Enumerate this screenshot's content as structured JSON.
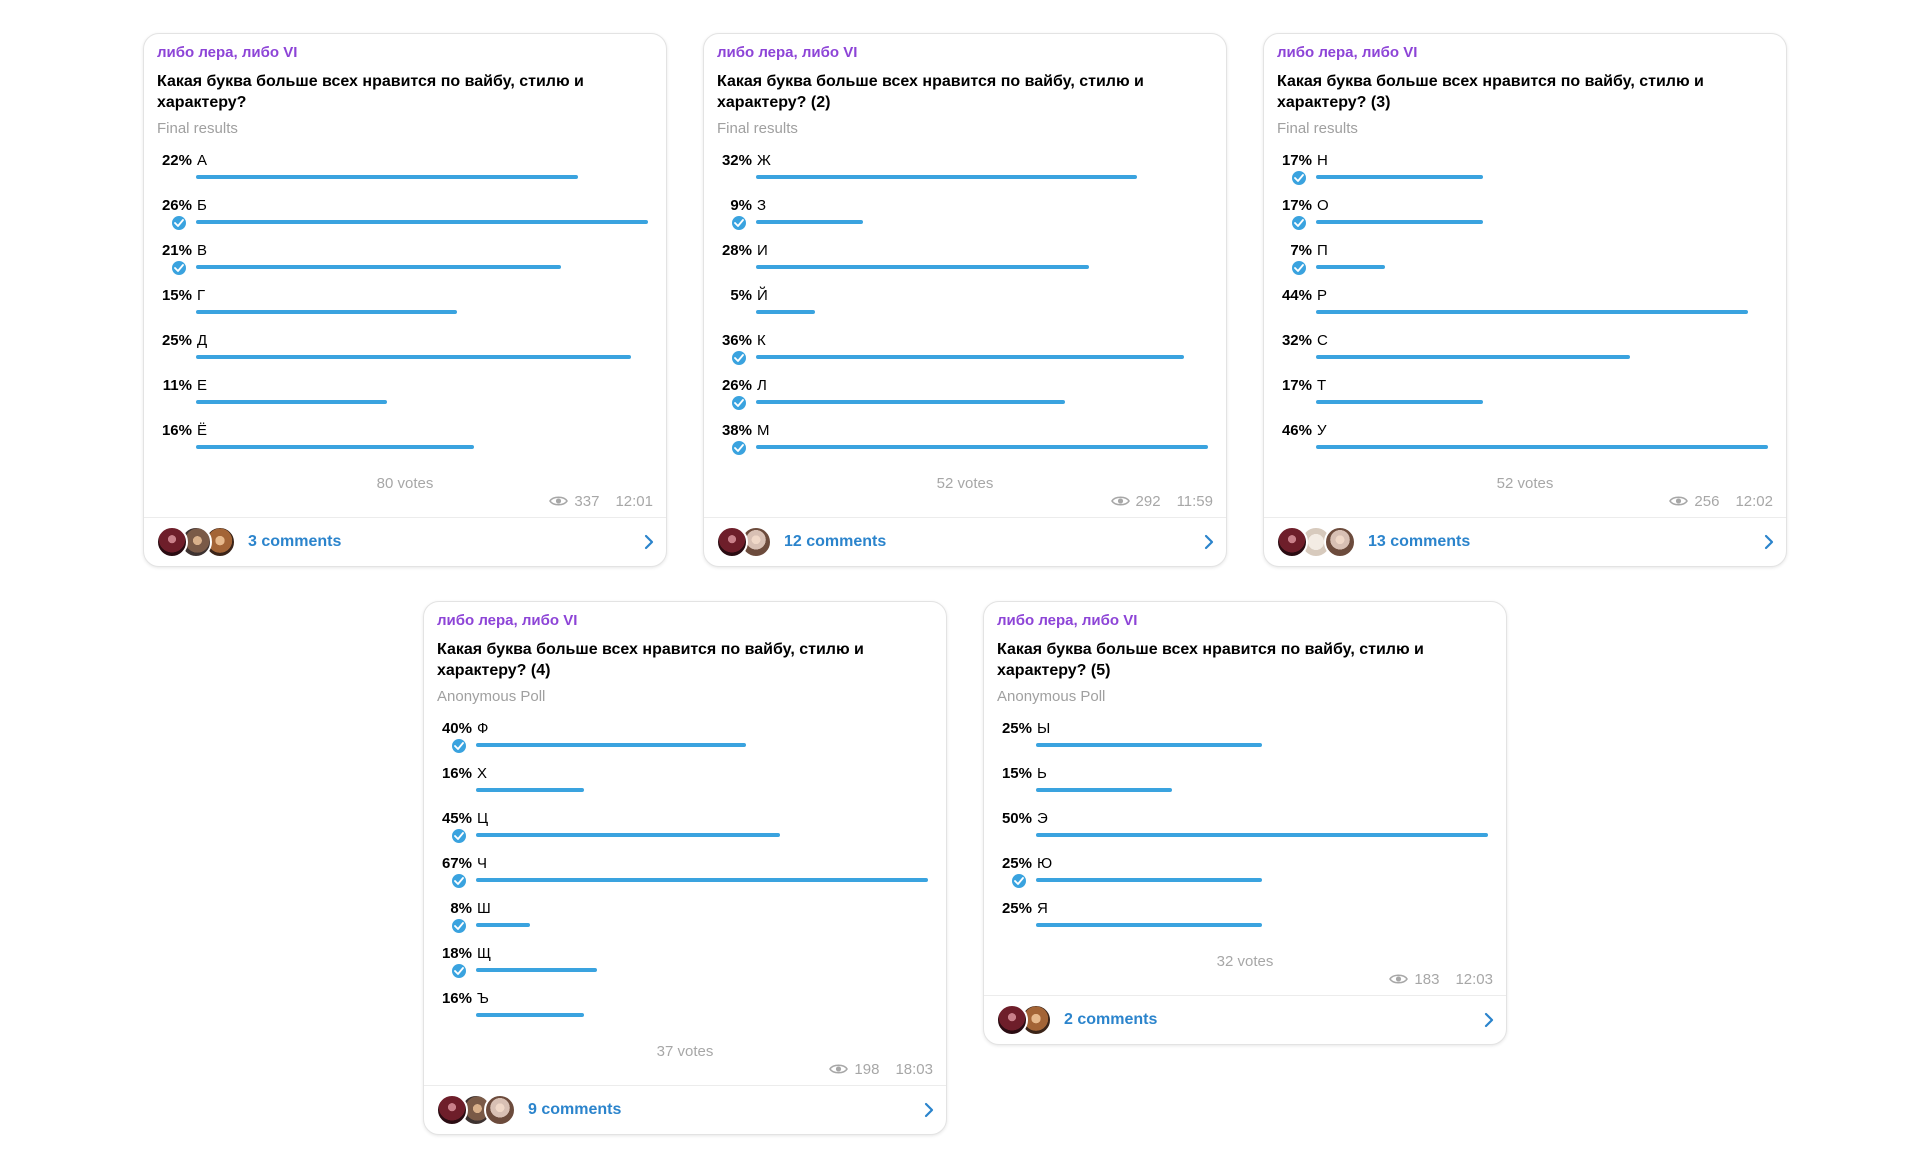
{
  "accent_color": "#3aa3df",
  "channel_color": "#8d44d7",
  "polls": [
    {
      "channel": "либо лера, либо VI",
      "question": "Какая буква больше всех нравится по вайбу, стилю и характеру?",
      "poll_type": "Final results",
      "options": [
        {
          "percent": "22%",
          "label": "А",
          "fraction": 0.22,
          "chosen": false
        },
        {
          "percent": "26%",
          "label": "Б",
          "fraction": 0.26,
          "chosen": true
        },
        {
          "percent": "21%",
          "label": "В",
          "fraction": 0.21,
          "chosen": true
        },
        {
          "percent": "15%",
          "label": "Г",
          "fraction": 0.15,
          "chosen": false
        },
        {
          "percent": "25%",
          "label": "Д",
          "fraction": 0.25,
          "chosen": false
        },
        {
          "percent": "11%",
          "label": "Е",
          "fraction": 0.11,
          "chosen": false
        },
        {
          "percent": "16%",
          "label": "Ё",
          "fraction": 0.16,
          "chosen": false
        }
      ],
      "votes": "80 votes",
      "views": "337",
      "time": "12:01",
      "comments": "3 comments",
      "avatars": [
        "a1",
        "a2",
        "a3"
      ]
    },
    {
      "channel": "либо лера, либо VI",
      "question": "Какая буква больше всех нравится по вайбу, стилю и характеру? (2)",
      "poll_type": "Final results",
      "options": [
        {
          "percent": "32%",
          "label": "Ж",
          "fraction": 0.32,
          "chosen": false
        },
        {
          "percent": "9%",
          "label": "З",
          "fraction": 0.09,
          "chosen": true
        },
        {
          "percent": "28%",
          "label": "И",
          "fraction": 0.28,
          "chosen": false
        },
        {
          "percent": "5%",
          "label": "Й",
          "fraction": 0.05,
          "chosen": false
        },
        {
          "percent": "36%",
          "label": "К",
          "fraction": 0.36,
          "chosen": true
        },
        {
          "percent": "26%",
          "label": "Л",
          "fraction": 0.26,
          "chosen": true
        },
        {
          "percent": "38%",
          "label": "М",
          "fraction": 0.38,
          "chosen": true
        }
      ],
      "votes": "52 votes",
      "views": "292",
      "time": "11:59",
      "comments": "12 comments",
      "avatars": [
        "a1",
        "a4"
      ]
    },
    {
      "channel": "либо лера, либо VI",
      "question": "Какая буква больше всех нравится по вайбу, стилю и характеру? (3)",
      "poll_type": "Final results",
      "options": [
        {
          "percent": "17%",
          "label": "Н",
          "fraction": 0.17,
          "chosen": true
        },
        {
          "percent": "17%",
          "label": "О",
          "fraction": 0.17,
          "chosen": true
        },
        {
          "percent": "7%",
          "label": "П",
          "fraction": 0.07,
          "chosen": true
        },
        {
          "percent": "44%",
          "label": "Р",
          "fraction": 0.44,
          "chosen": false
        },
        {
          "percent": "32%",
          "label": "С",
          "fraction": 0.32,
          "chosen": false
        },
        {
          "percent": "17%",
          "label": "Т",
          "fraction": 0.17,
          "chosen": false
        },
        {
          "percent": "46%",
          "label": "У",
          "fraction": 0.46,
          "chosen": false
        }
      ],
      "votes": "52 votes",
      "views": "256",
      "time": "12:02",
      "comments": "13 comments",
      "avatars": [
        "a1",
        "a5",
        "a4"
      ]
    },
    {
      "channel": "либо лера, либо VI",
      "question": "Какая буква больше всех нравится по вайбу, стилю и характеру? (4)",
      "poll_type": "Anonymous Poll",
      "options": [
        {
          "percent": "40%",
          "label": "Ф",
          "fraction": 0.4,
          "chosen": true
        },
        {
          "percent": "16%",
          "label": "Х",
          "fraction": 0.16,
          "chosen": false
        },
        {
          "percent": "45%",
          "label": "Ц",
          "fraction": 0.45,
          "chosen": true
        },
        {
          "percent": "67%",
          "label": "Ч",
          "fraction": 0.67,
          "chosen": true
        },
        {
          "percent": "8%",
          "label": "Ш",
          "fraction": 0.08,
          "chosen": true
        },
        {
          "percent": "18%",
          "label": "Щ",
          "fraction": 0.18,
          "chosen": true
        },
        {
          "percent": "16%",
          "label": "Ъ",
          "fraction": 0.16,
          "chosen": false
        }
      ],
      "votes": "37 votes",
      "views": "198",
      "time": "18:03",
      "comments": "9 comments",
      "avatars": [
        "a1",
        "a2",
        "a4"
      ]
    },
    {
      "channel": "либо лера, либо VI",
      "question": "Какая буква больше всех нравится по вайбу, стилю и характеру? (5)",
      "poll_type": "Anonymous Poll",
      "options": [
        {
          "percent": "25%",
          "label": "Ы",
          "fraction": 0.25,
          "chosen": false
        },
        {
          "percent": "15%",
          "label": "Ь",
          "fraction": 0.15,
          "chosen": false
        },
        {
          "percent": "50%",
          "label": "Э",
          "fraction": 0.5,
          "chosen": false
        },
        {
          "percent": "25%",
          "label": "Ю",
          "fraction": 0.25,
          "chosen": true
        },
        {
          "percent": "25%",
          "label": "Я",
          "fraction": 0.25,
          "chosen": false
        }
      ],
      "votes": "32 votes",
      "views": "183",
      "time": "12:03",
      "comments": "2 comments",
      "avatars": [
        "a1",
        "a3"
      ]
    }
  ]
}
